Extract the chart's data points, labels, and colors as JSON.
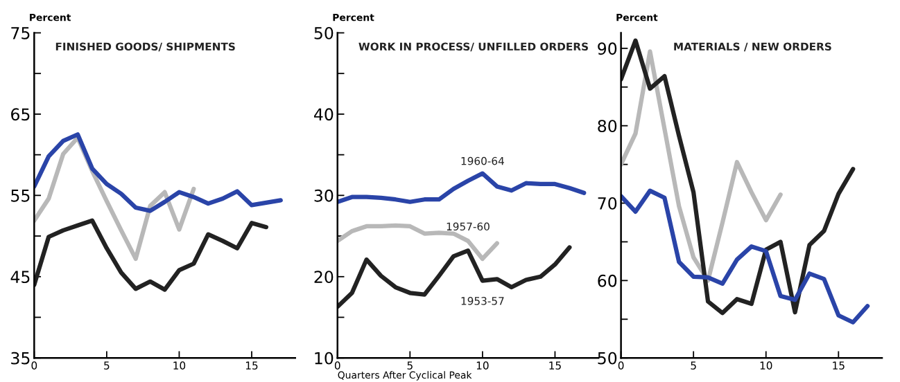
{
  "chart_data": [
    {
      "type": "line",
      "title": "FINISHED GOODS/ SHIPMENTS",
      "ylabel": "Percent",
      "x": [
        0,
        1,
        2,
        3,
        4,
        5,
        6,
        7,
        8,
        9,
        10,
        11,
        12,
        13,
        14,
        15,
        16,
        17
      ],
      "xlim": [
        0,
        18
      ],
      "xticks": [
        0,
        5,
        10,
        15
      ],
      "ylim": [
        35,
        75
      ],
      "yticks": [
        35,
        {
          "value": 40,
          "label": null
        },
        45,
        {
          "value": 50,
          "label": null
        },
        55,
        {
          "value": 60,
          "label": null
        },
        65,
        {
          "value": 70,
          "label": null
        },
        75
      ],
      "grid": false,
      "legend": false,
      "marker": "none",
      "series": [
        {
          "color": "#b8b8b8",
          "x": [
            0,
            1,
            2,
            3,
            4,
            5,
            6,
            7,
            8,
            9,
            10,
            11
          ],
          "values": [
            51.9,
            54.6,
            60.1,
            62.1,
            58.0,
            54.3,
            50.7,
            47.2,
            53.7,
            55.4,
            50.8,
            55.8
          ]
        },
        {
          "color": "#222222",
          "x": [
            0,
            1,
            2,
            3,
            4,
            5,
            6,
            7,
            8,
            9,
            10,
            11,
            12,
            13,
            14,
            15,
            16
          ],
          "values": [
            44.0,
            49.9,
            50.7,
            51.3,
            51.9,
            48.5,
            45.5,
            43.5,
            44.4,
            43.4,
            45.8,
            46.6,
            50.2,
            49.4,
            48.5,
            51.6,
            51.1
          ]
        },
        {
          "color": "#2a44a8",
          "values": [
            56.1,
            59.8,
            61.7,
            62.5,
            58.3,
            56.4,
            55.2,
            53.5,
            53.1,
            54.2,
            55.4,
            54.8,
            54.0,
            54.6,
            55.5,
            53.8,
            54.1,
            54.4
          ]
        }
      ]
    },
    {
      "type": "line",
      "title": "WORK IN PROCESS/ UNFILLED ORDERS",
      "ylabel": "Percent",
      "xlabel": "Quarters After Cyclical Peak",
      "x": [
        0,
        1,
        2,
        3,
        4,
        5,
        6,
        7,
        8,
        9,
        10,
        11,
        12,
        13,
        14,
        15,
        16,
        17
      ],
      "xlim": [
        0,
        18
      ],
      "xticks": [
        0,
        5,
        10,
        15
      ],
      "ylim": [
        10,
        50
      ],
      "yticks": [
        10,
        {
          "value": 15,
          "label": null
        },
        20,
        {
          "value": 25,
          "label": null
        },
        30,
        {
          "value": 35,
          "label": null
        },
        40,
        {
          "value": 45,
          "label": null
        },
        50
      ],
      "grid": false,
      "legend": false,
      "marker": "none",
      "series": [
        {
          "name": "1957-60",
          "color": "#b8b8b8",
          "x": [
            0,
            1,
            2,
            3,
            4,
            5,
            6,
            7,
            8,
            9,
            10,
            11
          ],
          "values": [
            24.4,
            25.6,
            26.2,
            26.2,
            26.3,
            26.2,
            25.3,
            25.4,
            25.3,
            24.4,
            22.2,
            24.1
          ]
        },
        {
          "name": "1953-57",
          "color": "#222222",
          "x": [
            0,
            1,
            2,
            3,
            4,
            5,
            6,
            7,
            8,
            9,
            10,
            11,
            12,
            13,
            14,
            15,
            16
          ],
          "values": [
            16.3,
            18.0,
            22.1,
            20.1,
            18.7,
            18.0,
            17.8,
            20.1,
            22.5,
            23.2,
            19.5,
            19.7,
            18.7,
            19.6,
            20.0,
            21.5,
            23.6
          ]
        },
        {
          "name": "1960-64",
          "color": "#2a44a8",
          "values": [
            29.2,
            29.8,
            29.8,
            29.7,
            29.5,
            29.2,
            29.5,
            29.5,
            30.8,
            31.8,
            32.7,
            31.1,
            30.6,
            31.5,
            31.4,
            31.4,
            30.9,
            30.3
          ]
        }
      ]
    },
    {
      "type": "line",
      "title": "MATERIALS / NEW ORDERS",
      "ylabel": "Percent",
      "x": [
        0,
        1,
        2,
        3,
        4,
        5,
        6,
        7,
        8,
        9,
        10,
        11,
        12,
        13,
        14,
        15,
        16,
        17
      ],
      "xlim": [
        0,
        18
      ],
      "xticks": [
        0,
        5,
        10,
        15
      ],
      "ylim": [
        50,
        92
      ],
      "yticks": [
        50,
        {
          "value": 55,
          "label": null
        },
        60,
        {
          "value": 65,
          "label": null
        },
        70,
        {
          "value": 75,
          "label": null
        },
        80,
        {
          "value": 85,
          "label": null
        },
        90
      ],
      "grid": false,
      "legend": false,
      "marker": "none",
      "series": [
        {
          "color": "#b8b8b8",
          "x": [
            0,
            1,
            2,
            3,
            4,
            5,
            6,
            7,
            8,
            9,
            10,
            11
          ],
          "values": [
            75.0,
            79.0,
            89.6,
            79.6,
            69.6,
            63.0,
            60.0,
            67.5,
            75.3,
            71.4,
            67.8,
            71.1
          ]
        },
        {
          "color": "#222222",
          "x": [
            0,
            1,
            2,
            3,
            4,
            5,
            6,
            7,
            8,
            9,
            10,
            11,
            12,
            13,
            14,
            15,
            16
          ],
          "values": [
            86.0,
            91.0,
            84.8,
            86.4,
            78.7,
            71.4,
            57.3,
            55.8,
            57.6,
            57.0,
            64.0,
            65.0,
            55.9,
            64.6,
            66.4,
            71.2,
            74.4
          ]
        },
        {
          "color": "#2a44a8",
          "values": [
            70.9,
            68.9,
            71.6,
            70.7,
            62.4,
            60.5,
            60.4,
            59.6,
            62.7,
            64.4,
            63.8,
            58.0,
            57.5,
            60.9,
            60.2,
            55.5,
            54.6,
            56.7
          ]
        }
      ]
    }
  ]
}
